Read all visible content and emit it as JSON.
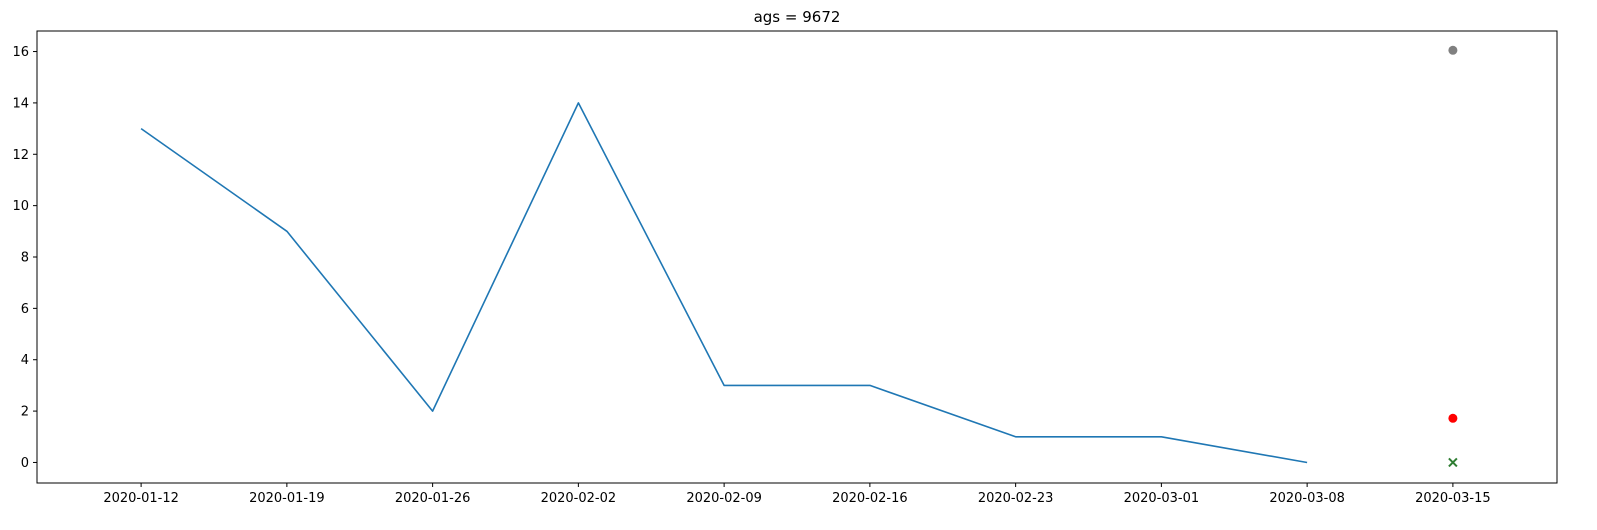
{
  "chart_data": {
    "type": "line",
    "title": "ags = 9672",
    "xlabel": "",
    "ylabel": "",
    "x": [
      "2020-01-12",
      "2020-01-19",
      "2020-01-26",
      "2020-02-02",
      "2020-02-09",
      "2020-02-16",
      "2020-02-23",
      "2020-03-01",
      "2020-03-08"
    ],
    "x_tick_labels": [
      "2020-01-12",
      "2020-01-19",
      "2020-01-26",
      "2020-02-02",
      "2020-02-09",
      "2020-02-16",
      "2020-02-23",
      "2020-03-01",
      "2020-03-08",
      "2020-03-15"
    ],
    "y_ticks": [
      0,
      2,
      4,
      6,
      8,
      10,
      12,
      14,
      16
    ],
    "ylim": [
      -0.8,
      16.8
    ],
    "xlim": [
      "2020-01-07",
      "2020-03-20"
    ],
    "grid": false,
    "series": [
      {
        "values": [
          13,
          9,
          2,
          14,
          3,
          3,
          1,
          1,
          0
        ],
        "color": "#1f77b4",
        "style": "line"
      }
    ],
    "markers": [
      {
        "x": "2020-03-15",
        "y": 16.05,
        "color": "#808080",
        "marker": "circle"
      },
      {
        "x": "2020-03-15",
        "y": 1.72,
        "color": "#ff0000",
        "marker": "circle"
      },
      {
        "x": "2020-03-15",
        "y": 0,
        "color": "#2e7d32",
        "marker": "x"
      }
    ]
  }
}
